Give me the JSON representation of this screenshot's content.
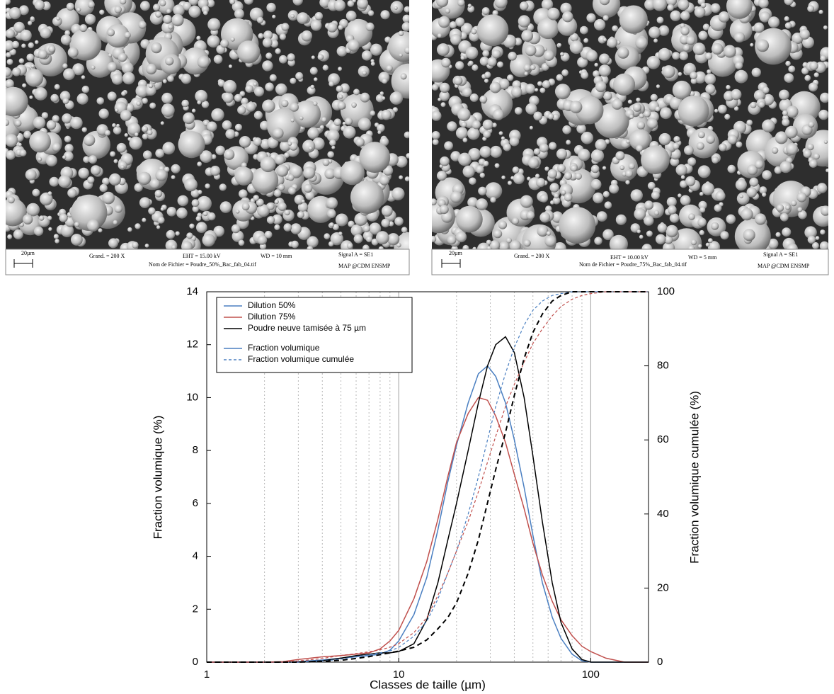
{
  "images": [
    {
      "scale": "20µm",
      "mag": "Grand. =    200 X",
      "eht": "EHT = 15.00 kV",
      "wd": "WD =   10 mm",
      "file": "Nom de Fichier = Poudre_50%_Bac_fab_04.tif",
      "signal": "Signal A = SE1",
      "lab": "MAP @CDM ENSMP"
    },
    {
      "scale": "20µm",
      "mag": "Grand. =    200 X",
      "eht": "EHT = 10.00 kV",
      "wd": "WD =    5 mm",
      "file": "Nom de Fichier = Poudre_75%_Bac_fab_04.tif",
      "signal": "Signal A = SE1",
      "lab": "MAP @CDM ENSMP"
    }
  ],
  "chart_data": {
    "type": "line",
    "xlabel": "Classes de taille (µm)",
    "ylabel": "Fraction volumique (%)",
    "y2label": "Fraction volumique cumulée (%)",
    "xscale": "log",
    "xlim": [
      1,
      200
    ],
    "xticks": [
      1,
      10,
      100
    ],
    "xminor": [
      2,
      3,
      4,
      5,
      6,
      7,
      8,
      9,
      20,
      30,
      40,
      50,
      60,
      70,
      80,
      90
    ],
    "xmajorgrid": [
      10,
      100
    ],
    "ylim": [
      0,
      14
    ],
    "yticks": [
      0,
      2,
      4,
      6,
      8,
      10,
      12,
      14
    ],
    "y2lim": [
      0,
      100
    ],
    "y2ticks": [
      0,
      20,
      40,
      60,
      80,
      100
    ],
    "x": [
      1,
      2,
      2.5,
      3,
      4,
      5,
      6,
      7,
      8,
      9,
      10,
      12,
      14,
      16,
      18,
      20,
      23,
      26,
      29,
      32,
      36,
      40,
      45,
      50,
      56,
      63,
      70,
      80,
      90,
      100,
      120,
      150,
      200
    ],
    "series": [
      {
        "name": "Dilution 50%",
        "color": "#4a7fc1",
        "dash": false,
        "values": [
          0,
          0,
          0,
          0.02,
          0.08,
          0.15,
          0.2,
          0.25,
          0.3,
          0.45,
          0.8,
          1.8,
          3.2,
          5.0,
          6.8,
          8.2,
          9.8,
          10.9,
          11.2,
          10.8,
          9.8,
          8.4,
          6.6,
          4.8,
          3.0,
          1.7,
          0.9,
          0.3,
          0.05,
          0,
          0,
          0,
          0
        ]
      },
      {
        "name": "Dilution 75%",
        "color": "#c0504d",
        "dash": false,
        "values": [
          0,
          0,
          0.02,
          0.1,
          0.2,
          0.25,
          0.3,
          0.35,
          0.5,
          0.8,
          1.2,
          2.4,
          3.8,
          5.4,
          7.0,
          8.3,
          9.4,
          10.0,
          9.9,
          9.3,
          8.3,
          7.1,
          5.8,
          4.5,
          3.3,
          2.3,
          1.6,
          1.0,
          0.6,
          0.4,
          0.15,
          0,
          0
        ]
      },
      {
        "name": "Poudre neuve tamisée à 75 µm",
        "color": "#000000",
        "dash": false,
        "values": [
          0,
          0,
          0,
          0,
          0.05,
          0.15,
          0.25,
          0.3,
          0.35,
          0.35,
          0.4,
          0.7,
          1.6,
          3.0,
          4.6,
          6.0,
          8.0,
          9.8,
          11.2,
          12.0,
          12.3,
          11.7,
          10.0,
          7.8,
          5.3,
          3.0,
          1.5,
          0.5,
          0.1,
          0,
          0,
          0,
          0
        ]
      },
      {
        "color": "#4a7fc1",
        "dash": true,
        "axis": "y2",
        "values": [
          0,
          0,
          0,
          0,
          0.3,
          0.8,
          1.5,
          2,
          2.5,
          3,
          4,
          7,
          11,
          17,
          24,
          30,
          40,
          50,
          60,
          69,
          78,
          85,
          91,
          95,
          97.5,
          99,
          99.5,
          100,
          100,
          100,
          100,
          100,
          100
        ]
      },
      {
        "color": "#c0504d",
        "dash": true,
        "axis": "y2",
        "values": [
          0,
          0,
          0,
          0.3,
          1,
          1.8,
          2.3,
          2.8,
          3.3,
          4,
          5,
          8,
          12,
          18,
          24,
          30,
          38,
          46,
          54,
          61,
          69,
          75,
          81,
          86,
          90,
          93.5,
          96,
          98,
          99,
          99.5,
          100,
          100,
          100
        ]
      },
      {
        "color": "#000000",
        "dash": true,
        "axis": "y2",
        "values": [
          0,
          0,
          0,
          0,
          0.2,
          0.5,
          1,
          1.5,
          2,
          2.5,
          3,
          4,
          6,
          9,
          12,
          16,
          24,
          33,
          43,
          52,
          62,
          72,
          82,
          89,
          94,
          97.5,
          99,
          100,
          100,
          100,
          100,
          100,
          100
        ]
      }
    ],
    "legend_styles": [
      {
        "label": "Fraction volumique",
        "color": "#4a7fc1",
        "dash": false
      },
      {
        "label": "Fraction volumique cumulée",
        "color": "#4a7fc1",
        "dash": true
      }
    ],
    "legend": "upper left"
  }
}
